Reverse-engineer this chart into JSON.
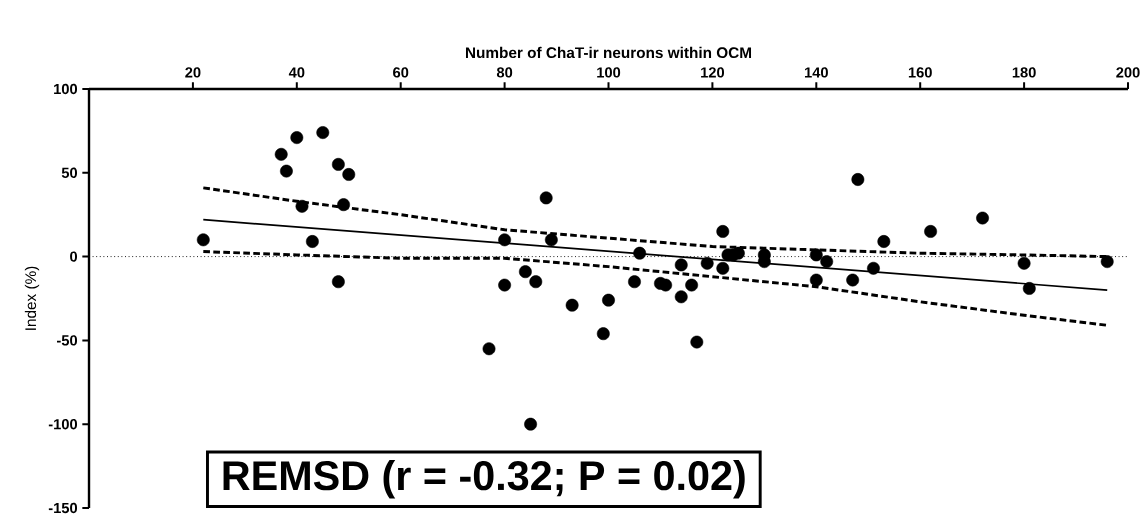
{
  "chart_data": {
    "type": "scatter",
    "xlabel": "Number of ChaT-ir neurons within OCM",
    "ylabel": "Index (%)",
    "xlim": [
      0,
      200
    ],
    "xticks": [
      20,
      40,
      60,
      80,
      100,
      120,
      140,
      160,
      180,
      200
    ],
    "ylim": [
      -150,
      100
    ],
    "yticks": [
      -150,
      -100,
      -50,
      0,
      50,
      100
    ],
    "grid": false,
    "series": [
      {
        "type": "scatter",
        "marker": "circle",
        "color": "#000000",
        "x": [
          22,
          37,
          38,
          40,
          45,
          41,
          43,
          48,
          50,
          49,
          48,
          80,
          88,
          89,
          80,
          84,
          86,
          77,
          85,
          93,
          100,
          99,
          106,
          105,
          110,
          111,
          114,
          114,
          116,
          117,
          119,
          122,
          122,
          123,
          124,
          125,
          130,
          130,
          140,
          142,
          140,
          147,
          148,
          151,
          153,
          162,
          172,
          180,
          181,
          196
        ],
        "values": [
          10,
          61,
          51,
          71,
          74,
          30,
          9,
          55,
          49,
          31,
          -15,
          10,
          35,
          10,
          -17,
          -9,
          -15,
          -55,
          -100,
          -29,
          -26,
          -46,
          2,
          -15,
          -16,
          -17,
          -5,
          -24,
          -17,
          -51,
          -4,
          15,
          -7,
          1,
          1,
          2,
          1,
          -3,
          1,
          -3,
          -14,
          -14,
          46,
          -7,
          9,
          15,
          23,
          -4,
          -19,
          -3
        ]
      },
      {
        "type": "line",
        "marker": "none",
        "color": "#000000",
        "line_style": "solid",
        "x": [
          22,
          196
        ],
        "values": [
          22,
          -20
        ]
      },
      {
        "type": "line",
        "marker": "none",
        "color": "#000000",
        "line_style": "dashed",
        "x": [
          22,
          40,
          60,
          80,
          100,
          120,
          140,
          160,
          180,
          196
        ],
        "values": [
          41,
          33,
          25,
          16,
          11,
          6,
          4,
          2,
          1,
          0
        ]
      },
      {
        "type": "line",
        "marker": "none",
        "color": "#000000",
        "line_style": "dashed",
        "x": [
          22,
          40,
          60,
          80,
          100,
          120,
          140,
          160,
          180,
          196
        ],
        "values": [
          3,
          1,
          -1,
          -1,
          -6,
          -12,
          -18,
          -27,
          -35,
          -41
        ]
      }
    ],
    "ref_lines": [
      {
        "axis": "y",
        "value": 0,
        "line_style": "dotted",
        "color": "#000000"
      }
    ],
    "annotations": [
      "REMSD (r = -0.32; P = 0.02)"
    ]
  }
}
